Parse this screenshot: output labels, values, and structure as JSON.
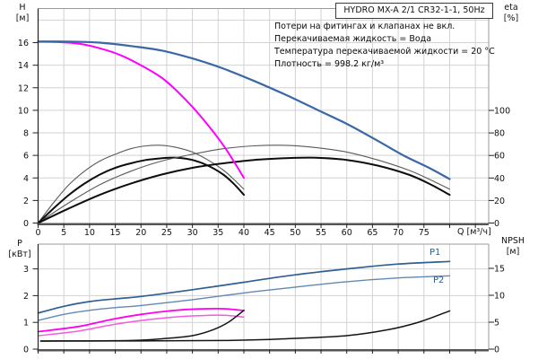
{
  "title_box": "HYDRO MX-A 2/1 CR32-1-1, 50Hz",
  "info_lines": [
    "Потери на фитингах и клапанах не вкл.",
    "Перекачиваемая жидкость = Вода",
    "Температура перекачиваемой жидкости = 20 °C",
    "Плотность = 998.2 кг/м³"
  ],
  "axis_labels": {
    "head": "H",
    "head_unit": "[м]",
    "eta": "eta",
    "eta_unit": "[%]",
    "power": "P",
    "power_unit": "[кВт]",
    "npsh": "NPSH",
    "npsh_unit": "[м]",
    "flow": "Q [м³/ч]"
  },
  "curve_labels": {
    "p1": "P1",
    "p2": "P2"
  },
  "colors": {
    "head_2pumps": "#3a68a6",
    "head_1pump": "#ff00ff",
    "eta_hydraulic": "#5a5a5a",
    "eta_total": "#0d0d0d",
    "p1": "#2d5f92",
    "p2": "#6288b4",
    "p1_single": "#ff00f0",
    "p2_single": "#f55ae0",
    "npsh": "#141414",
    "grid": "#d2d2d2",
    "border": "#9a9a9a",
    "axis": "#222222",
    "axis_thick": "#555555"
  },
  "chart_data": [
    {
      "type": "line",
      "title": "HYDRO MX-A 2/1 CR32-1-1, 50Hz",
      "x_axis": {
        "label": "Q [м³/ч]",
        "range": [
          0,
          87.5
        ],
        "grid_step": 5,
        "labeled_ticks": [
          0,
          5,
          10,
          15,
          20,
          25,
          30,
          35,
          40,
          45,
          50,
          55,
          60,
          65,
          70,
          75
        ]
      },
      "y_axis_left": {
        "label": "H [м]",
        "range": [
          0,
          19
        ],
        "ticks": [
          0,
          2,
          4,
          6,
          8,
          10,
          12,
          14,
          16
        ],
        "grid": [
          2,
          4,
          6,
          8,
          10,
          12,
          14,
          16,
          18
        ]
      },
      "y_axis_right": {
        "label": "eta [%]",
        "range": [
          0,
          100
        ],
        "ticks": [
          0,
          20,
          40,
          60,
          80,
          100
        ]
      },
      "series": [
        {
          "name": "eta-pump-1-pump",
          "axis": "right",
          "color": "#5a5a5a",
          "width": 1.1,
          "points": [
            [
              0,
              0
            ],
            [
              3,
              18
            ],
            [
              6,
              34
            ],
            [
              9,
              46
            ],
            [
              12,
              55
            ],
            [
              15,
              61
            ],
            [
              18,
              66
            ],
            [
              21,
              68.5
            ],
            [
              24,
              69
            ],
            [
              27,
              67
            ],
            [
              30,
              63
            ],
            [
              33,
              56
            ],
            [
              36,
              47
            ],
            [
              38,
              39
            ],
            [
              40,
              30
            ]
          ]
        },
        {
          "name": "eta-total-1-pump",
          "axis": "right",
          "color": "#0d0d0d",
          "width": 2,
          "points": [
            [
              0,
              0
            ],
            [
              3,
              13
            ],
            [
              6,
              25
            ],
            [
              9,
              35
            ],
            [
              12,
              43
            ],
            [
              15,
              49
            ],
            [
              18,
              53
            ],
            [
              21,
              56
            ],
            [
              24,
              57.5
            ],
            [
              27,
              58
            ],
            [
              30,
              56
            ],
            [
              33,
              51
            ],
            [
              36,
              43
            ],
            [
              38,
              35
            ],
            [
              40,
              25
            ]
          ]
        },
        {
          "name": "eta-pump-2-pumps",
          "axis": "right",
          "color": "#5a5a5a",
          "width": 1.1,
          "points": [
            [
              0,
              0
            ],
            [
              6,
              18
            ],
            [
              12,
              34
            ],
            [
              18,
              46
            ],
            [
              24,
              55
            ],
            [
              30,
              61
            ],
            [
              36,
              66
            ],
            [
              42,
              68.5
            ],
            [
              48,
              69
            ],
            [
              54,
              67
            ],
            [
              60,
              63
            ],
            [
              66,
              56
            ],
            [
              72,
              47
            ],
            [
              76,
              39
            ],
            [
              80,
              30
            ]
          ]
        },
        {
          "name": "eta-total-2-pumps",
          "axis": "right",
          "color": "#0d0d0d",
          "width": 2,
          "points": [
            [
              0,
              0
            ],
            [
              6,
              13
            ],
            [
              12,
              25
            ],
            [
              18,
              35
            ],
            [
              24,
              43
            ],
            [
              30,
              49
            ],
            [
              36,
              53
            ],
            [
              42,
              56
            ],
            [
              48,
              57.5
            ],
            [
              54,
              58
            ],
            [
              60,
              56
            ],
            [
              66,
              51
            ],
            [
              72,
              43
            ],
            [
              76,
              35
            ],
            [
              80,
              25
            ]
          ]
        },
        {
          "name": "head-1-pump",
          "axis": "left",
          "color": "#ff00ff",
          "width": 2,
          "points": [
            [
              0,
              16.1
            ],
            [
              4,
              16.05
            ],
            [
              8,
              15.9
            ],
            [
              12,
              15.5
            ],
            [
              16,
              14.9
            ],
            [
              20,
              14.0
            ],
            [
              24,
              12.9
            ],
            [
              27,
              11.7
            ],
            [
              30,
              10.3
            ],
            [
              33,
              8.7
            ],
            [
              36,
              6.9
            ],
            [
              38,
              5.5
            ],
            [
              40,
              4.0
            ]
          ]
        },
        {
          "name": "head-2-pumps",
          "axis": "left",
          "color": "#3a68a6",
          "width": 2.2,
          "points": [
            [
              0,
              16.1
            ],
            [
              6,
              16.1
            ],
            [
              12,
              16.0
            ],
            [
              18,
              15.7
            ],
            [
              24,
              15.3
            ],
            [
              30,
              14.6
            ],
            [
              36,
              13.7
            ],
            [
              42,
              12.6
            ],
            [
              48,
              11.4
            ],
            [
              54,
              10.1
            ],
            [
              60,
              8.8
            ],
            [
              66,
              7.3
            ],
            [
              71,
              6.0
            ],
            [
              76,
              4.9
            ],
            [
              80,
              3.9
            ]
          ]
        }
      ]
    },
    {
      "type": "line",
      "x_axis": {
        "label": "",
        "range": [
          0,
          87.5
        ],
        "grid_step": 5,
        "labeled_ticks": []
      },
      "y_axis_left": {
        "label": "P [кВт]",
        "range": [
          0,
          3.9
        ],
        "ticks": [
          0,
          1,
          2,
          3
        ],
        "grid": [
          1,
          2,
          3
        ]
      },
      "y_axis_right": {
        "label": "NPSH [м]",
        "range": [
          0,
          19.5
        ],
        "ticks": [
          0,
          5,
          10,
          15
        ]
      },
      "series": [
        {
          "name": "power-p1-2-pumps",
          "label": "P1",
          "axis": "left",
          "color": "#2d5f92",
          "width": 1.7,
          "points": [
            [
              0,
              1.35
            ],
            [
              5,
              1.6
            ],
            [
              10,
              1.78
            ],
            [
              15,
              1.88
            ],
            [
              20,
              1.97
            ],
            [
              30,
              2.22
            ],
            [
              40,
              2.5
            ],
            [
              50,
              2.78
            ],
            [
              60,
              3.0
            ],
            [
              70,
              3.18
            ],
            [
              80,
              3.28
            ]
          ]
        },
        {
          "name": "power-p2-2-pumps",
          "label": "P2",
          "axis": "left",
          "color": "#6288b4",
          "width": 1.4,
          "points": [
            [
              0,
              1.07
            ],
            [
              5,
              1.3
            ],
            [
              10,
              1.45
            ],
            [
              15,
              1.55
            ],
            [
              20,
              1.63
            ],
            [
              30,
              1.85
            ],
            [
              40,
              2.1
            ],
            [
              50,
              2.32
            ],
            [
              60,
              2.52
            ],
            [
              70,
              2.66
            ],
            [
              80,
              2.74
            ]
          ]
        },
        {
          "name": "power-p1-1-pump",
          "axis": "left",
          "color": "#ff00f0",
          "width": 1.8,
          "points": [
            [
              0,
              0.65
            ],
            [
              8,
              0.85
            ],
            [
              14,
              1.1
            ],
            [
              20,
              1.3
            ],
            [
              26,
              1.44
            ],
            [
              31,
              1.5
            ],
            [
              36,
              1.51
            ],
            [
              40,
              1.44
            ]
          ]
        },
        {
          "name": "power-p2-1-pump",
          "axis": "left",
          "color": "#f55ae0",
          "width": 1.5,
          "points": [
            [
              0,
              0.5
            ],
            [
              8,
              0.68
            ],
            [
              14,
              0.9
            ],
            [
              20,
              1.07
            ],
            [
              26,
              1.19
            ],
            [
              31,
              1.25
            ],
            [
              36,
              1.27
            ],
            [
              40,
              1.2
            ]
          ]
        },
        {
          "name": "npsh-1-pump",
          "axis": "right",
          "color": "#141414",
          "width": 1.5,
          "points": [
            [
              0.5,
              1.5
            ],
            [
              18,
              1.6
            ],
            [
              25,
              2.0
            ],
            [
              30,
              2.5
            ],
            [
              34,
              3.6
            ],
            [
              37,
              5.0
            ],
            [
              40,
              7.2
            ]
          ]
        },
        {
          "name": "npsh-2-pumps",
          "axis": "right",
          "color": "#141414",
          "width": 1.5,
          "points": [
            [
              0.5,
              1.5
            ],
            [
              36,
              1.6
            ],
            [
              50,
              2.0
            ],
            [
              60,
              2.5
            ],
            [
              68,
              3.6
            ],
            [
              74,
              5.0
            ],
            [
              80,
              7.1
            ]
          ]
        }
      ]
    }
  ]
}
